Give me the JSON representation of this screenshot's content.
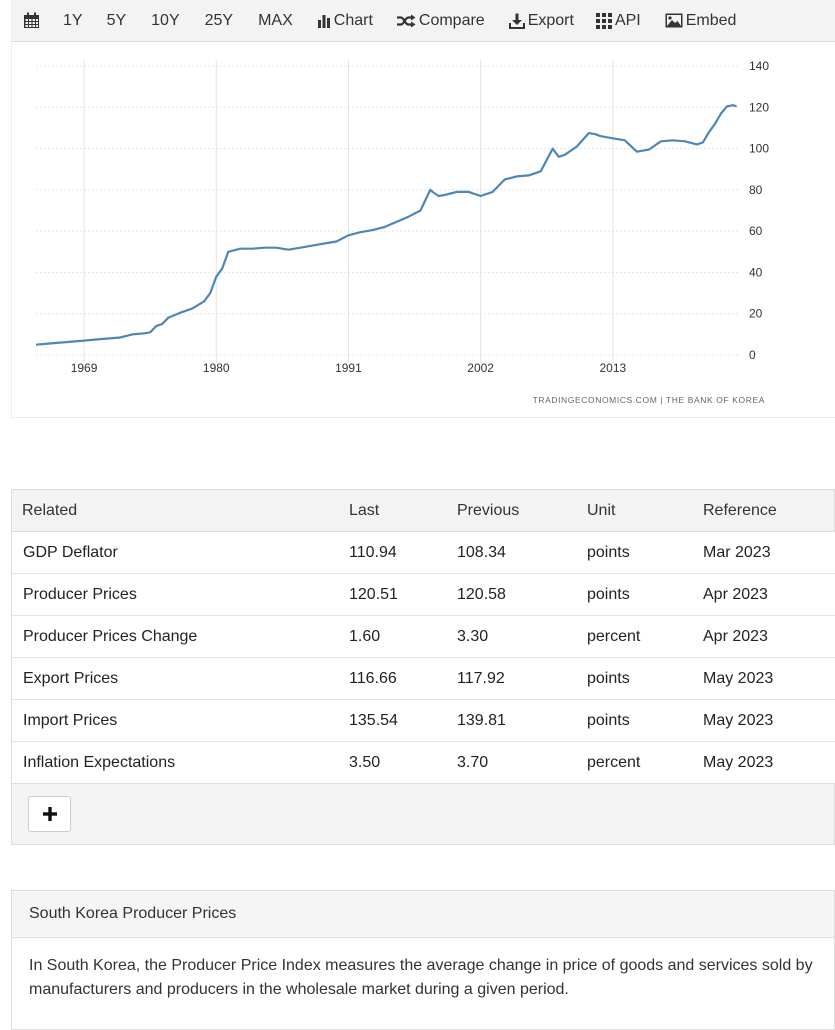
{
  "toolbar": {
    "calendar_icon": "calendar-icon",
    "ranges": [
      "1Y",
      "5Y",
      "10Y",
      "25Y",
      "MAX"
    ],
    "chart_label": "Chart",
    "compare_label": "Compare",
    "export_label": "Export",
    "api_label": "API",
    "embed_label": "Embed"
  },
  "chart_data": {
    "type": "line",
    "x_ticks": [
      "1969",
      "1980",
      "1991",
      "2002",
      "2013"
    ],
    "y_ticks": [
      "0",
      "20",
      "40",
      "60",
      "80",
      "100",
      "120",
      "140"
    ],
    "ylim": [
      0,
      140
    ],
    "xlim": [
      1965,
      2023.5
    ],
    "grid": true,
    "line_color": "#4f86b5",
    "source": "TRADINGECONOMICS.COM  |  THE BANK OF KOREA",
    "series": [
      {
        "x": [
          1965,
          1966,
          1967,
          1968,
          1969,
          1970,
          1971,
          1972,
          1973,
          1974,
          1974.5,
          1975,
          1975.5,
          1976,
          1977,
          1978,
          1979,
          1979.5,
          1980,
          1980.5,
          1981,
          1982,
          1983,
          1984,
          1985,
          1986,
          1987,
          1988,
          1989,
          1990,
          1991,
          1992,
          1993,
          1994,
          1995,
          1996,
          1997,
          1997.8,
          1998,
          1998.5,
          1999,
          2000,
          2001,
          2002,
          2003,
          2004,
          2005,
          2006,
          2007,
          2008,
          2008.5,
          2009,
          2010,
          2011,
          2011.5,
          2012,
          2013,
          2014,
          2015,
          2016,
          2017,
          2018,
          2019,
          2020,
          2020.5,
          2021,
          2021.5,
          2022,
          2022.5,
          2023,
          2023.3
        ],
        "values": [
          5,
          5.5,
          6,
          6.5,
          7,
          7.5,
          8,
          8.5,
          10,
          10.5,
          11,
          14,
          15,
          18,
          20.5,
          22.5,
          26,
          30,
          38,
          42,
          50,
          51.5,
          51.5,
          52,
          52,
          51,
          52,
          53,
          54,
          55,
          58,
          59.5,
          60.5,
          62,
          64.5,
          67,
          70,
          80,
          79,
          77,
          77.5,
          79,
          79,
          77,
          79,
          85,
          86.5,
          87,
          89,
          100,
          96,
          97,
          101,
          107.5,
          107,
          106,
          105,
          104,
          98.5,
          99.5,
          103.5,
          104,
          103.5,
          102,
          103,
          108,
          112,
          117,
          120.5,
          121,
          120.5
        ]
      }
    ]
  },
  "related": {
    "headers": [
      "Related",
      "Last",
      "Previous",
      "Unit",
      "Reference"
    ],
    "rows": [
      [
        "GDP Deflator",
        "110.94",
        "108.34",
        "points",
        "Mar 2023"
      ],
      [
        "Producer Prices",
        "120.51",
        "120.58",
        "points",
        "Apr 2023"
      ],
      [
        "Producer Prices Change",
        "1.60",
        "3.30",
        "percent",
        "Apr 2023"
      ],
      [
        "Export Prices",
        "116.66",
        "117.92",
        "points",
        "May 2023"
      ],
      [
        "Import Prices",
        "135.54",
        "139.81",
        "points",
        "May 2023"
      ],
      [
        "Inflation Expectations",
        "3.50",
        "3.70",
        "percent",
        "May 2023"
      ]
    ],
    "add_icon": "plus-icon"
  },
  "description": {
    "title": "South Korea Producer Prices",
    "text": "In South Korea, the Producer Price Index measures the average change in price of goods and services sold by manufacturers and producers in the wholesale market during a given period."
  }
}
